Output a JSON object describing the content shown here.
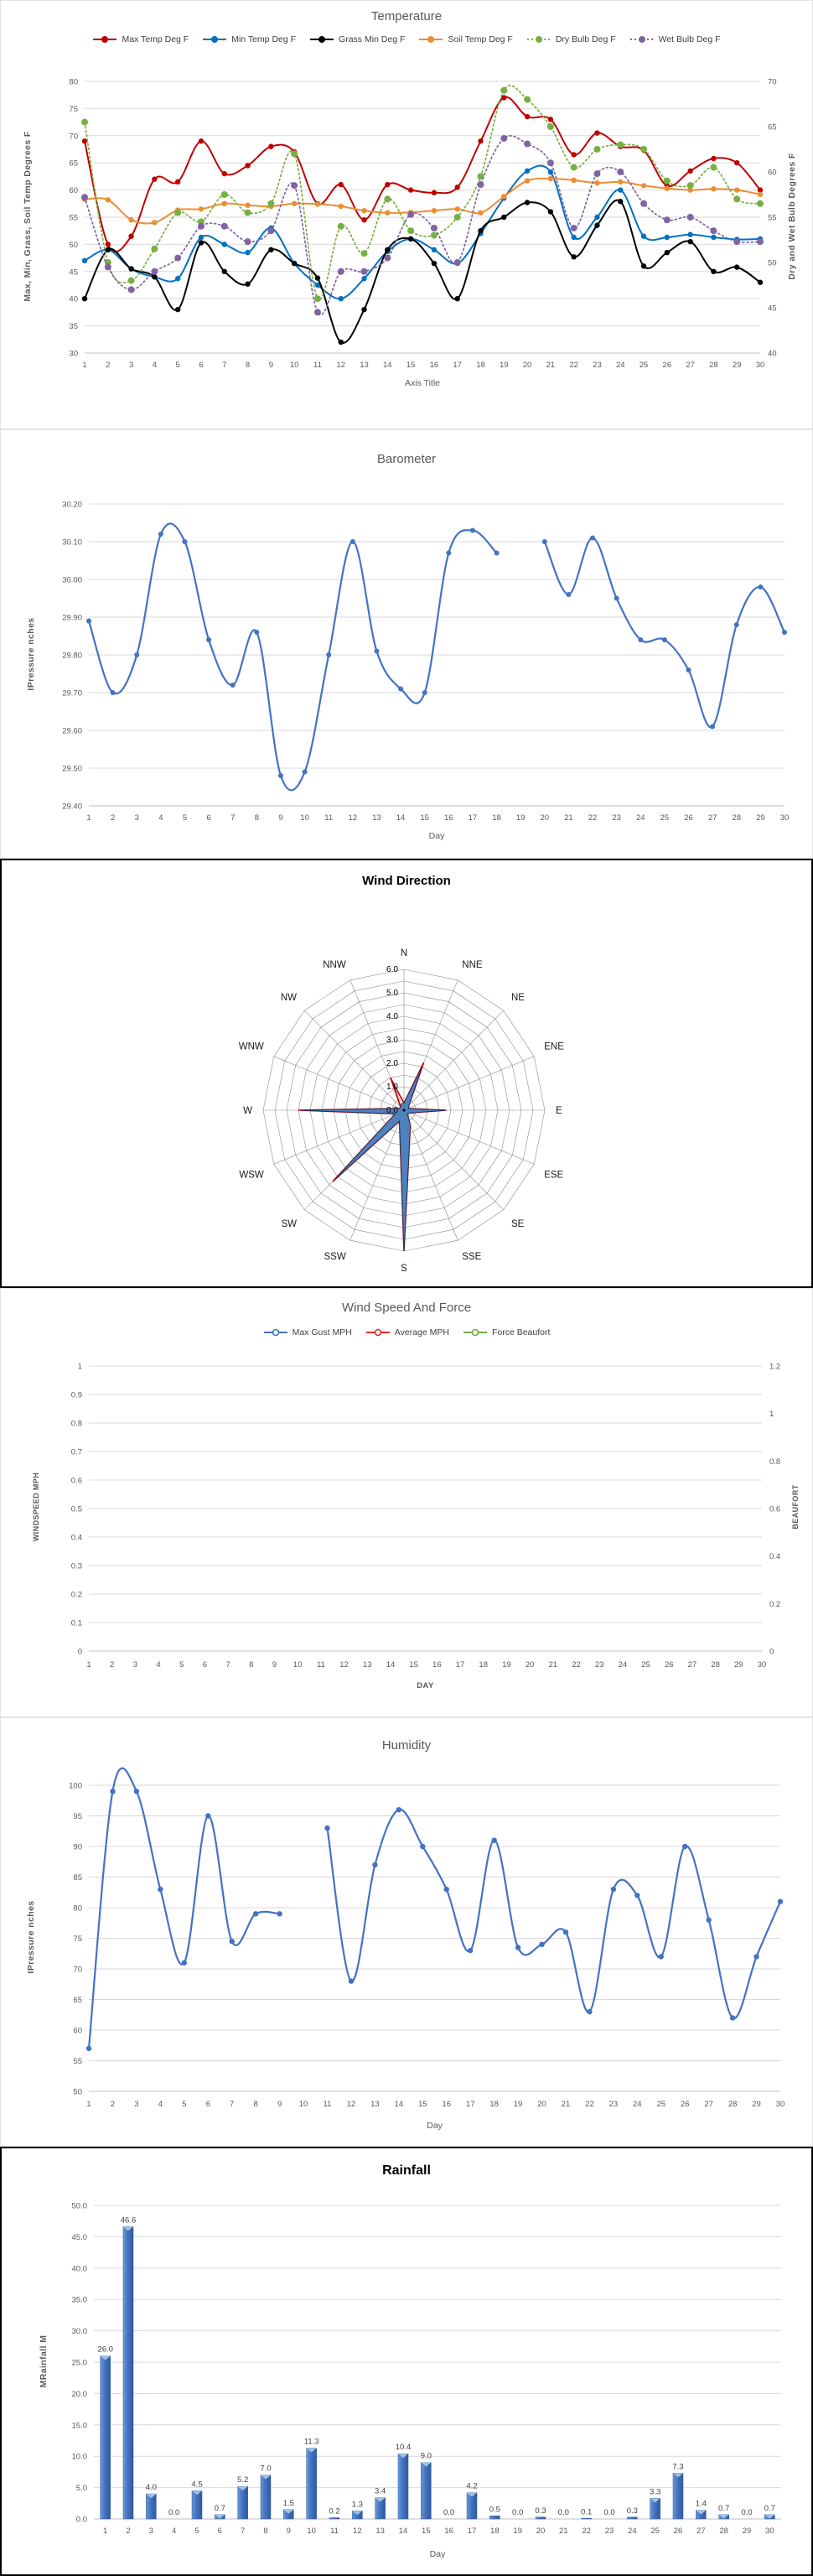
{
  "charts": {
    "temperature": {
      "title": "Temperature",
      "xlabel": "Axis Title",
      "ylabel_left": "Max, Min, Grass, Soil Temp Degrees F",
      "ylabel_right": "Dry and Wet Bulb Degrees F",
      "chart_data": {
        "type": "line",
        "x": [
          1,
          2,
          3,
          4,
          5,
          6,
          7,
          8,
          9,
          10,
          11,
          12,
          13,
          14,
          15,
          16,
          17,
          18,
          19,
          20,
          21,
          22,
          23,
          24,
          25,
          26,
          27,
          28,
          29,
          30
        ],
        "ylim_left": [
          30,
          80
        ],
        "yticks_left": [
          "30",
          "35",
          "40",
          "45",
          "50",
          "55",
          "60",
          "65",
          "70",
          "75",
          "80"
        ],
        "ylim_right": [
          40,
          70
        ],
        "yticks_right": [
          "40",
          "45",
          "50",
          "55",
          "60",
          "65",
          "70"
        ],
        "grid": true,
        "legend_position": "top",
        "series": [
          {
            "name": "Max Temp Deg F",
            "color": "#C00000",
            "axis": "left",
            "dash": "solid",
            "values": [
              69,
              50,
              51.5,
              62,
              61.5,
              69,
              63,
              64.5,
              68,
              67,
              57.5,
              61,
              54.5,
              61,
              60,
              59.5,
              60.5,
              69,
              77,
              73.5,
              73,
              66.5,
              70.5,
              68,
              67.3,
              60.8,
              63.5,
              65.8,
              65,
              60
            ]
          },
          {
            "name": "Min Temp Deg F",
            "color": "#0070C0",
            "axis": "left",
            "dash": "solid",
            "values": [
              47,
              49,
              45.5,
              44,
              43.7,
              51.3,
              50,
              48.5,
              53,
              46.5,
              42.5,
              40,
              43.7,
              48.7,
              51,
              49,
              46.5,
              52,
              58.5,
              63.5,
              63.3,
              51.3,
              55,
              60,
              51.5,
              51.3,
              51.8,
              51.3,
              50.9,
              51
            ]
          },
          {
            "name": "Grass Min Deg F",
            "color": "#000000",
            "axis": "left",
            "dash": "solid",
            "values": [
              40,
              49,
              45.5,
              44,
              38,
              50.3,
              45,
              42.7,
              49,
              46.5,
              43.8,
              32,
              38,
              49,
              51,
              46.5,
              40,
              52.5,
              55,
              57.7,
              56,
              47.7,
              53.5,
              57.9,
              46,
              48.5,
              50.5,
              45,
              45.8,
              43
            ]
          },
          {
            "name": "Soil Temp Deg F",
            "color": "#ED8D33",
            "axis": "left",
            "dash": "solid",
            "values": [
              58.3,
              58.2,
              54.5,
              54,
              56.3,
              56.5,
              57.5,
              57.2,
              57,
              57.5,
              57.4,
              57,
              56.2,
              55.8,
              55.9,
              56.2,
              56.5,
              55.8,
              58.8,
              61.7,
              62.1,
              61.8,
              61.3,
              61.5,
              60.8,
              60.3,
              60,
              60.2,
              60,
              59.2
            ]
          },
          {
            "name": "Dry Bulb Deg F",
            "color": "#76B041",
            "axis": "right",
            "dash": "dot",
            "values": [
              65.5,
              50,
              48,
              51.5,
              55.5,
              54.5,
              57.5,
              55.5,
              56.5,
              62,
              46,
              54,
              51,
              57,
              53.5,
              53,
              55,
              59.5,
              69,
              68,
              65,
              60.5,
              62.5,
              63,
              62.5,
              59,
              58.5,
              60.5,
              57,
              56.5
            ]
          },
          {
            "name": "Wet Bulb Deg F",
            "color": "#8064A2",
            "axis": "right",
            "dash": "dot",
            "values": [
              57.2,
              49.5,
              47,
              49,
              50.5,
              54,
              54,
              52.3,
              53.5,
              58.5,
              44.5,
              49,
              49,
              50.5,
              55.3,
              53.8,
              50,
              58.6,
              63.7,
              63.1,
              61,
              53.8,
              59.8,
              60,
              56.5,
              54.7,
              55,
              53.5,
              52.3,
              52.3
            ]
          }
        ]
      }
    },
    "barometer": {
      "title": "Barometer",
      "xlabel": "Day",
      "ylabel_left": "IPressure nches",
      "chart_data": {
        "type": "line",
        "x": [
          1,
          2,
          3,
          4,
          5,
          6,
          7,
          8,
          9,
          10,
          11,
          12,
          13,
          14,
          15,
          16,
          17,
          18,
          19,
          20,
          21,
          22,
          23,
          24,
          25,
          26,
          27,
          28,
          29,
          30
        ],
        "ylim_left": [
          29.4,
          30.2
        ],
        "yticks_left": [
          "29.40",
          "29.50",
          "29.60",
          "29.70",
          "29.80",
          "29.90",
          "30.00",
          "30.10",
          "30.20"
        ],
        "grid": true,
        "series": [
          {
            "name": "Pressure",
            "color": "#4472C4",
            "axis": "left",
            "dash": "solid",
            "values": [
              29.89,
              29.7,
              29.8,
              30.12,
              30.1,
              29.84,
              29.72,
              29.86,
              29.48,
              29.49,
              29.8,
              30.1,
              29.81,
              29.71,
              29.7,
              30.07,
              30.13,
              30.07,
              null,
              30.1,
              29.96,
              30.11,
              29.95,
              29.84,
              29.84,
              29.76,
              29.61,
              29.88,
              29.98,
              29.86
            ]
          }
        ]
      }
    },
    "wind_direction": {
      "title": "Wind Direction",
      "chart_data": {
        "type": "radar",
        "categories": [
          "N",
          "NNE",
          "NE",
          "ENE",
          "E",
          "ESE",
          "SE",
          "SSE",
          "S",
          "SSW",
          "SW",
          "WSW",
          "W",
          "WNW",
          "NW",
          "NNW"
        ],
        "rmax": 6,
        "ring_step": 0.5,
        "rticks": [
          "0.0",
          "1.0",
          "2.0",
          "3.0",
          "4.0",
          "5.0",
          "6.0"
        ],
        "series": [
          {
            "color": "#C00000",
            "fill": "none",
            "values": [
              0.3,
              2.2,
              0.3,
              0.2,
              1.8,
              0.3,
              0.2,
              0.7,
              6.0,
              0.5,
              4.3,
              0.4,
              4.5,
              0.2,
              0.2,
              1.5
            ]
          },
          {
            "color": "#17375E",
            "fill": "#4F81BD",
            "values": [
              0.3,
              2.0,
              0.3,
              0.2,
              1.8,
              0.3,
              0.2,
              0.7,
              6.0,
              0.5,
              4.2,
              0.4,
              4.4,
              0.2,
              0.2,
              0.3
            ]
          }
        ]
      }
    },
    "wind_speed": {
      "title": "Wind Speed And Force",
      "xlabel": "DAY",
      "ylabel_left": "WINDSPEED MPH",
      "ylabel_right": "BEAUFORT",
      "chart_data": {
        "type": "line",
        "x": [
          1,
          2,
          3,
          4,
          5,
          6,
          7,
          8,
          9,
          10,
          11,
          12,
          13,
          14,
          15,
          16,
          17,
          18,
          19,
          20,
          21,
          22,
          23,
          24,
          25,
          26,
          27,
          28,
          29,
          30
        ],
        "ylim_left": [
          0,
          1
        ],
        "yticks_left": [
          "0",
          "0.1",
          "0.2",
          "0.3",
          "0.4",
          "0.5",
          "0.6",
          "0.7",
          "0.8",
          "0.9",
          "1"
        ],
        "ylim_right": [
          0,
          1.2
        ],
        "yticks_right": [
          "0",
          "0.2",
          "0.4",
          "0.6",
          "0.8",
          "1",
          "1.2"
        ],
        "grid": true,
        "legend_position": "top",
        "series": [
          {
            "name": "Max Gust MPH",
            "color": "#4472C4",
            "axis": "left",
            "dash": "solid",
            "values": []
          },
          {
            "name": "Average MPH",
            "color": "#E02B20",
            "axis": "left",
            "dash": "solid",
            "values": []
          },
          {
            "name": "Force Beaufort",
            "color": "#70AD47",
            "axis": "right",
            "dash": "solid",
            "values": []
          }
        ]
      }
    },
    "humidity": {
      "title": "Humidity",
      "xlabel": "Day",
      "ylabel_left": "IPressure nches",
      "chart_data": {
        "type": "line",
        "x": [
          1,
          2,
          3,
          4,
          5,
          6,
          7,
          8,
          9,
          10,
          11,
          12,
          13,
          14,
          15,
          16,
          17,
          18,
          19,
          20,
          21,
          22,
          23,
          24,
          25,
          26,
          27,
          28,
          29,
          30
        ],
        "ylim_left": [
          50,
          100
        ],
        "yticks_left": [
          "50",
          "55",
          "60",
          "65",
          "70",
          "75",
          "80",
          "85",
          "90",
          "95",
          "100"
        ],
        "grid": true,
        "series": [
          {
            "name": "Humidity",
            "color": "#4472C4",
            "axis": "left",
            "dash": "solid",
            "values": [
              57,
              99,
              99,
              83,
              71,
              95,
              74.5,
              79,
              79,
              null,
              93,
              68,
              87,
              96,
              90,
              83,
              73,
              91,
              73.5,
              74,
              76,
              63,
              83,
              82,
              72,
              90,
              78,
              62,
              72,
              81
            ]
          }
        ]
      }
    },
    "rainfall": {
      "title": "Rainfall",
      "xlabel": "Day",
      "ylabel_left": "MRainfall M",
      "chart_data": {
        "type": "bar",
        "categories": [
          1,
          2,
          3,
          4,
          5,
          6,
          7,
          8,
          9,
          10,
          11,
          12,
          13,
          14,
          15,
          16,
          17,
          18,
          19,
          20,
          21,
          22,
          23,
          24,
          25,
          26,
          27,
          28,
          29,
          30
        ],
        "values": [
          26.0,
          46.6,
          4.0,
          0.0,
          4.5,
          0.7,
          5.2,
          7.0,
          1.5,
          11.3,
          0.2,
          1.3,
          3.4,
          10.4,
          9.0,
          0.0,
          4.2,
          0.5,
          0.0,
          0.3,
          0.0,
          0.1,
          0.0,
          0.3,
          3.3,
          7.3,
          1.4,
          0.7,
          0.0,
          0.7
        ],
        "data_labels": true,
        "bar_color": "#4472C4",
        "ylim": [
          0,
          50
        ],
        "yticks": [
          "0.0",
          "5.0",
          "10.0",
          "15.0",
          "20.0",
          "25.0",
          "30.0",
          "35.0",
          "40.0",
          "45.0",
          "50.0"
        ]
      }
    }
  }
}
